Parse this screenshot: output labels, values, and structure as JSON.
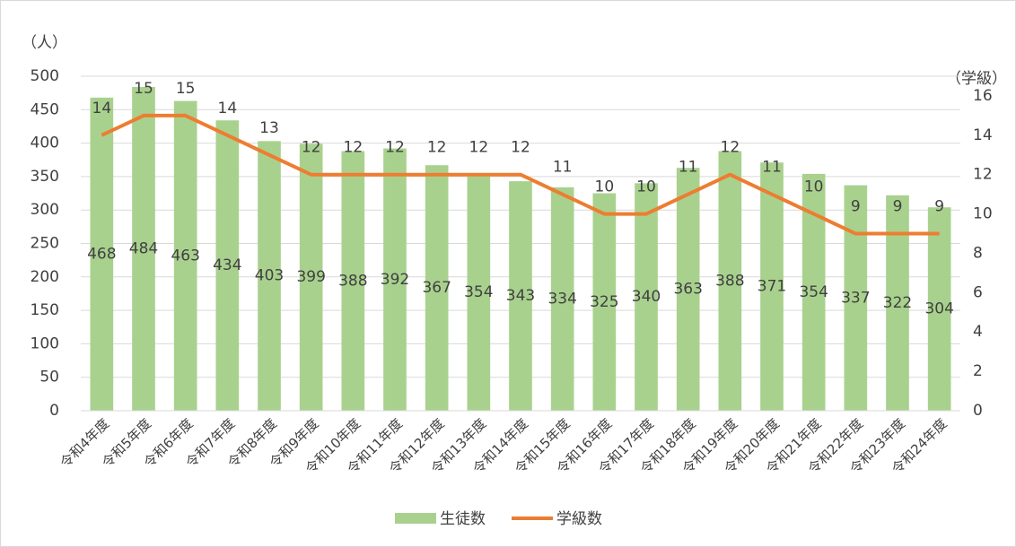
{
  "chart_data": {
    "type": "bar-line",
    "y_label": "（人）",
    "y2_label": "（学級）",
    "categories": [
      "令和4年度",
      "令和5年度",
      "令和6年度",
      "令和7年度",
      "令和8年度",
      "令和9年度",
      "令和10年度",
      "令和11年度",
      "令和12年度",
      "令和13年度",
      "令和14年度",
      "令和15年度",
      "令和16年度",
      "令和17年度",
      "令和18年度",
      "令和19年度",
      "令和20年度",
      "令和21年度",
      "令和22年度",
      "令和23年度",
      "令和24年度"
    ],
    "series": [
      {
        "name": "生徒数",
        "type": "bar",
        "color": "#a9d18e",
        "values": [
          468,
          484,
          463,
          434,
          403,
          399,
          388,
          392,
          367,
          354,
          343,
          334,
          325,
          340,
          363,
          388,
          371,
          354,
          337,
          322,
          304
        ]
      },
      {
        "name": "学級数",
        "type": "line",
        "axis": "y2",
        "color": "#ed7d31",
        "values": [
          14,
          15,
          15,
          14,
          13,
          12,
          12,
          12,
          12,
          12,
          12,
          11,
          10,
          10,
          11,
          12,
          11,
          10,
          9,
          9,
          9
        ]
      }
    ],
    "ylim": [
      0,
      500
    ],
    "yticks": [
      0,
      50,
      100,
      150,
      200,
      250,
      300,
      350,
      400,
      450,
      500
    ],
    "y2lim": [
      0,
      17
    ],
    "y2ticks": [
      0,
      2,
      4,
      6,
      8,
      10,
      12,
      14,
      16
    ],
    "grid": true,
    "legend": "bottom"
  }
}
